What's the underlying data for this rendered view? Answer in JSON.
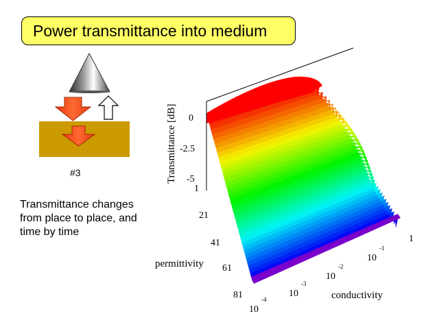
{
  "slide": {
    "title": "Power transmittance into medium",
    "diagram_label": "#3",
    "description_lines": [
      "Transmittance changes",
      "from place to place, and",
      "time by time"
    ]
  },
  "plot": {
    "z_axis_label": "Transmittance [dB]",
    "z_ticks": [
      "0",
      "-2.5",
      "-5"
    ],
    "permittivity_label": "permittivity",
    "permittivity_ticks": [
      "1",
      "21",
      "41",
      "61",
      "81"
    ],
    "conductivity_label": "conductivity",
    "conductivity_ticks": [
      {
        "base": "10",
        "exp": "-4"
      },
      {
        "base": "10",
        "exp": "-3"
      },
      {
        "base": "10",
        "exp": "-2"
      },
      {
        "base": "10",
        "exp": "-1"
      },
      {
        "base": "1",
        "exp": ""
      }
    ]
  },
  "colors": {
    "title_fill": "#ffff66",
    "medium": "#cc9900",
    "arrow": "#ff4c1a",
    "surface_high": "#ff0000",
    "surface_low": "#0000ff"
  }
}
